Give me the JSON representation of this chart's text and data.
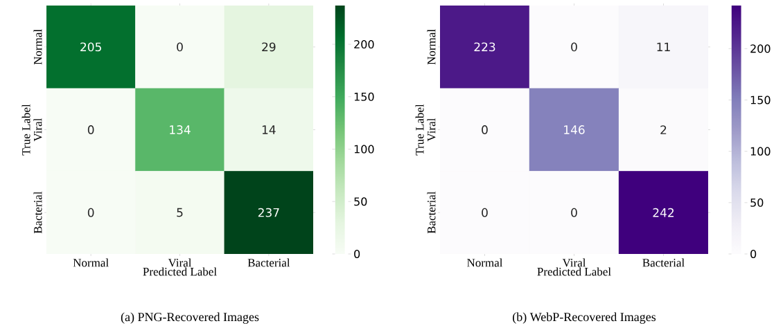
{
  "chart_data": [
    {
      "type": "heatmap",
      "title": "(a)  PNG-Recovered Images",
      "xlabel": "Predicted Label",
      "ylabel": "True Label",
      "categories": [
        "Normal",
        "Viral",
        "Bacterial"
      ],
      "y_categories": [
        "Normal",
        "Viral",
        "Bacterial"
      ],
      "cells": [
        [
          205,
          0,
          29
        ],
        [
          0,
          134,
          14
        ],
        [
          0,
          5,
          237
        ]
      ],
      "clim": [
        0,
        237
      ],
      "cticks": [
        0,
        50,
        100,
        150,
        200
      ],
      "data_labels": true
    },
    {
      "type": "heatmap",
      "title": "(b)  WebP-Recovered Images",
      "xlabel": "Predicted Label",
      "ylabel": "True Label",
      "categories": [
        "Normal",
        "Viral",
        "Bacterial"
      ],
      "y_categories": [
        "Normal",
        "Viral",
        "Bacterial"
      ],
      "cells": [
        [
          223,
          0,
          11
        ],
        [
          0,
          146,
          2
        ],
        [
          0,
          0,
          242
        ]
      ],
      "clim": [
        0,
        242
      ],
      "cticks": [
        0,
        50,
        100,
        150,
        200
      ],
      "data_labels": true
    }
  ]
}
